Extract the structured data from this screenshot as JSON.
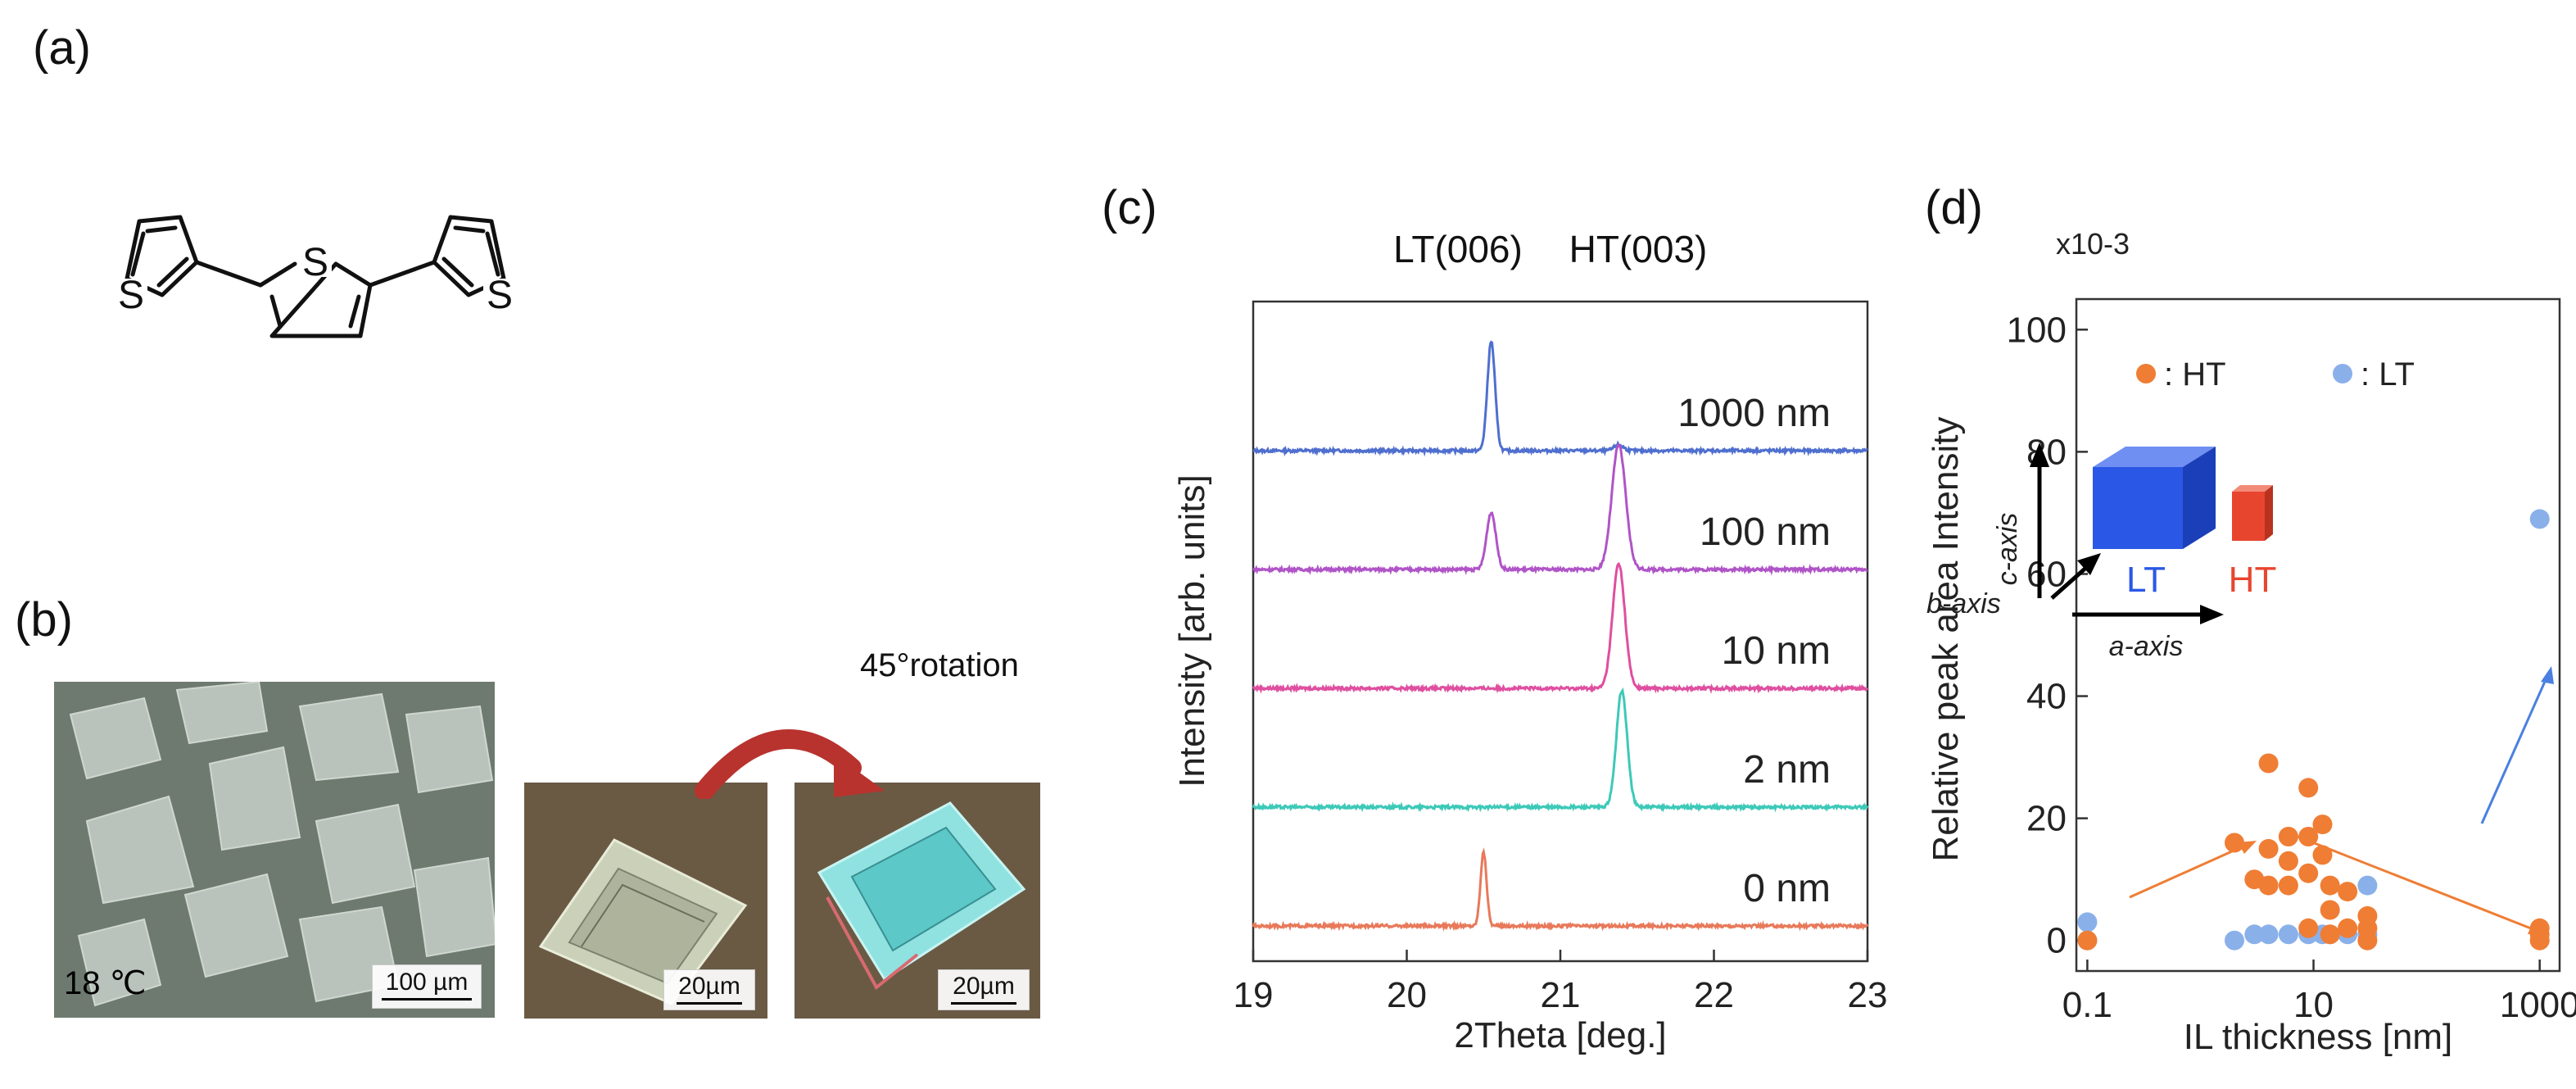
{
  "panels": {
    "a": "(a)",
    "b": "(b)",
    "c": "(c)",
    "d": "(d)"
  },
  "molecule": {
    "name": "terthiophene",
    "atoms": [
      "S",
      "S",
      "S"
    ]
  },
  "micrographs": {
    "temperature": "18 ℃",
    "scale_large": "100 µm",
    "scale_small_1": "20µm",
    "scale_small_2": "20µm",
    "rotation_label": "45°rotation",
    "colors": {
      "arrow": "#b8332e",
      "bg_left": "#6e7a70",
      "bg_right": "#6a5a44"
    }
  },
  "chart_data": [
    {
      "type": "line",
      "panel": "c",
      "xlabel": "2Theta [deg.]",
      "ylabel": "Intensity [arb. units]",
      "xlim": [
        19,
        23
      ],
      "xticks": [
        19,
        20,
        21,
        22,
        23
      ],
      "top_labels": [
        "LT(006)",
        "HT(003)"
      ],
      "series": [
        {
          "name": "1000 nm",
          "color": "#4f6fcf",
          "offset": 4,
          "peaks": [
            {
              "x": 20.55,
              "h": 0.92,
              "w": 0.025
            },
            {
              "x": 21.38,
              "h": 0.05,
              "w": 0.03
            }
          ]
        },
        {
          "name": "100 nm",
          "color": "#b054c8",
          "offset": 3,
          "peaks": [
            {
              "x": 20.55,
              "h": 0.48,
              "w": 0.03
            },
            {
              "x": 21.38,
              "h": 1.05,
              "w": 0.045
            }
          ]
        },
        {
          "name": "10 nm",
          "color": "#df4fa0",
          "offset": 2,
          "peaks": [
            {
              "x": 21.38,
              "h": 1.05,
              "w": 0.04
            }
          ]
        },
        {
          "name": "2 nm",
          "color": "#3dc9b8",
          "offset": 1,
          "peaks": [
            {
              "x": 21.4,
              "h": 0.98,
              "w": 0.035
            }
          ]
        },
        {
          "name": "0 nm",
          "color": "#e8795a",
          "offset": 0,
          "peaks": [
            {
              "x": 20.5,
              "h": 0.62,
              "w": 0.02
            }
          ]
        }
      ]
    },
    {
      "type": "scatter",
      "panel": "d",
      "xlabel": "IL thickness [nm]",
      "ylabel": "Relative peak area Intensity",
      "multiplier": "x10-3",
      "xscale": "log",
      "xlim": [
        0.08,
        1500
      ],
      "ylim": [
        -5,
        105
      ],
      "xticks": [
        "0.1",
        "10",
        "1000"
      ],
      "yticks": [
        "0",
        "20",
        "40",
        "60",
        "80",
        "100"
      ],
      "legend": [
        {
          "name": ": HT",
          "color": "#ef7d34"
        },
        {
          "name": ": LT",
          "color": "#8ab0ea"
        }
      ],
      "series": [
        {
          "name": "HT",
          "color": "#ef7d34",
          "x": [
            0.1,
            2,
            3,
            4,
            4,
            4,
            6,
            6,
            6,
            9,
            9,
            9,
            9,
            12,
            12,
            14,
            14,
            14,
            20,
            20,
            30,
            30,
            30,
            1000,
            1000,
            1000
          ],
          "y": [
            0,
            16,
            10,
            29,
            15,
            9,
            17,
            13,
            9,
            25,
            17,
            11,
            2,
            19,
            14,
            9,
            5,
            1,
            8,
            2,
            4,
            2,
            0,
            2,
            1,
            0
          ]
        },
        {
          "name": "LT",
          "color": "#8ab0ea",
          "x": [
            0.1,
            0.1,
            2,
            3,
            4,
            6,
            9,
            12,
            14,
            20,
            30,
            30,
            1000
          ],
          "y": [
            3,
            0,
            0,
            1,
            1,
            1,
            1,
            1,
            1,
            1,
            9,
            1,
            69
          ]
        }
      ],
      "inset": {
        "c_axis": "c-axis",
        "a_axis": "a-axis",
        "b_axis": "b-axis",
        "lt_label": "LT",
        "ht_label": "HT",
        "colors": {
          "lt": "#2a57e6",
          "ht": "#e8452f"
        }
      }
    }
  ]
}
